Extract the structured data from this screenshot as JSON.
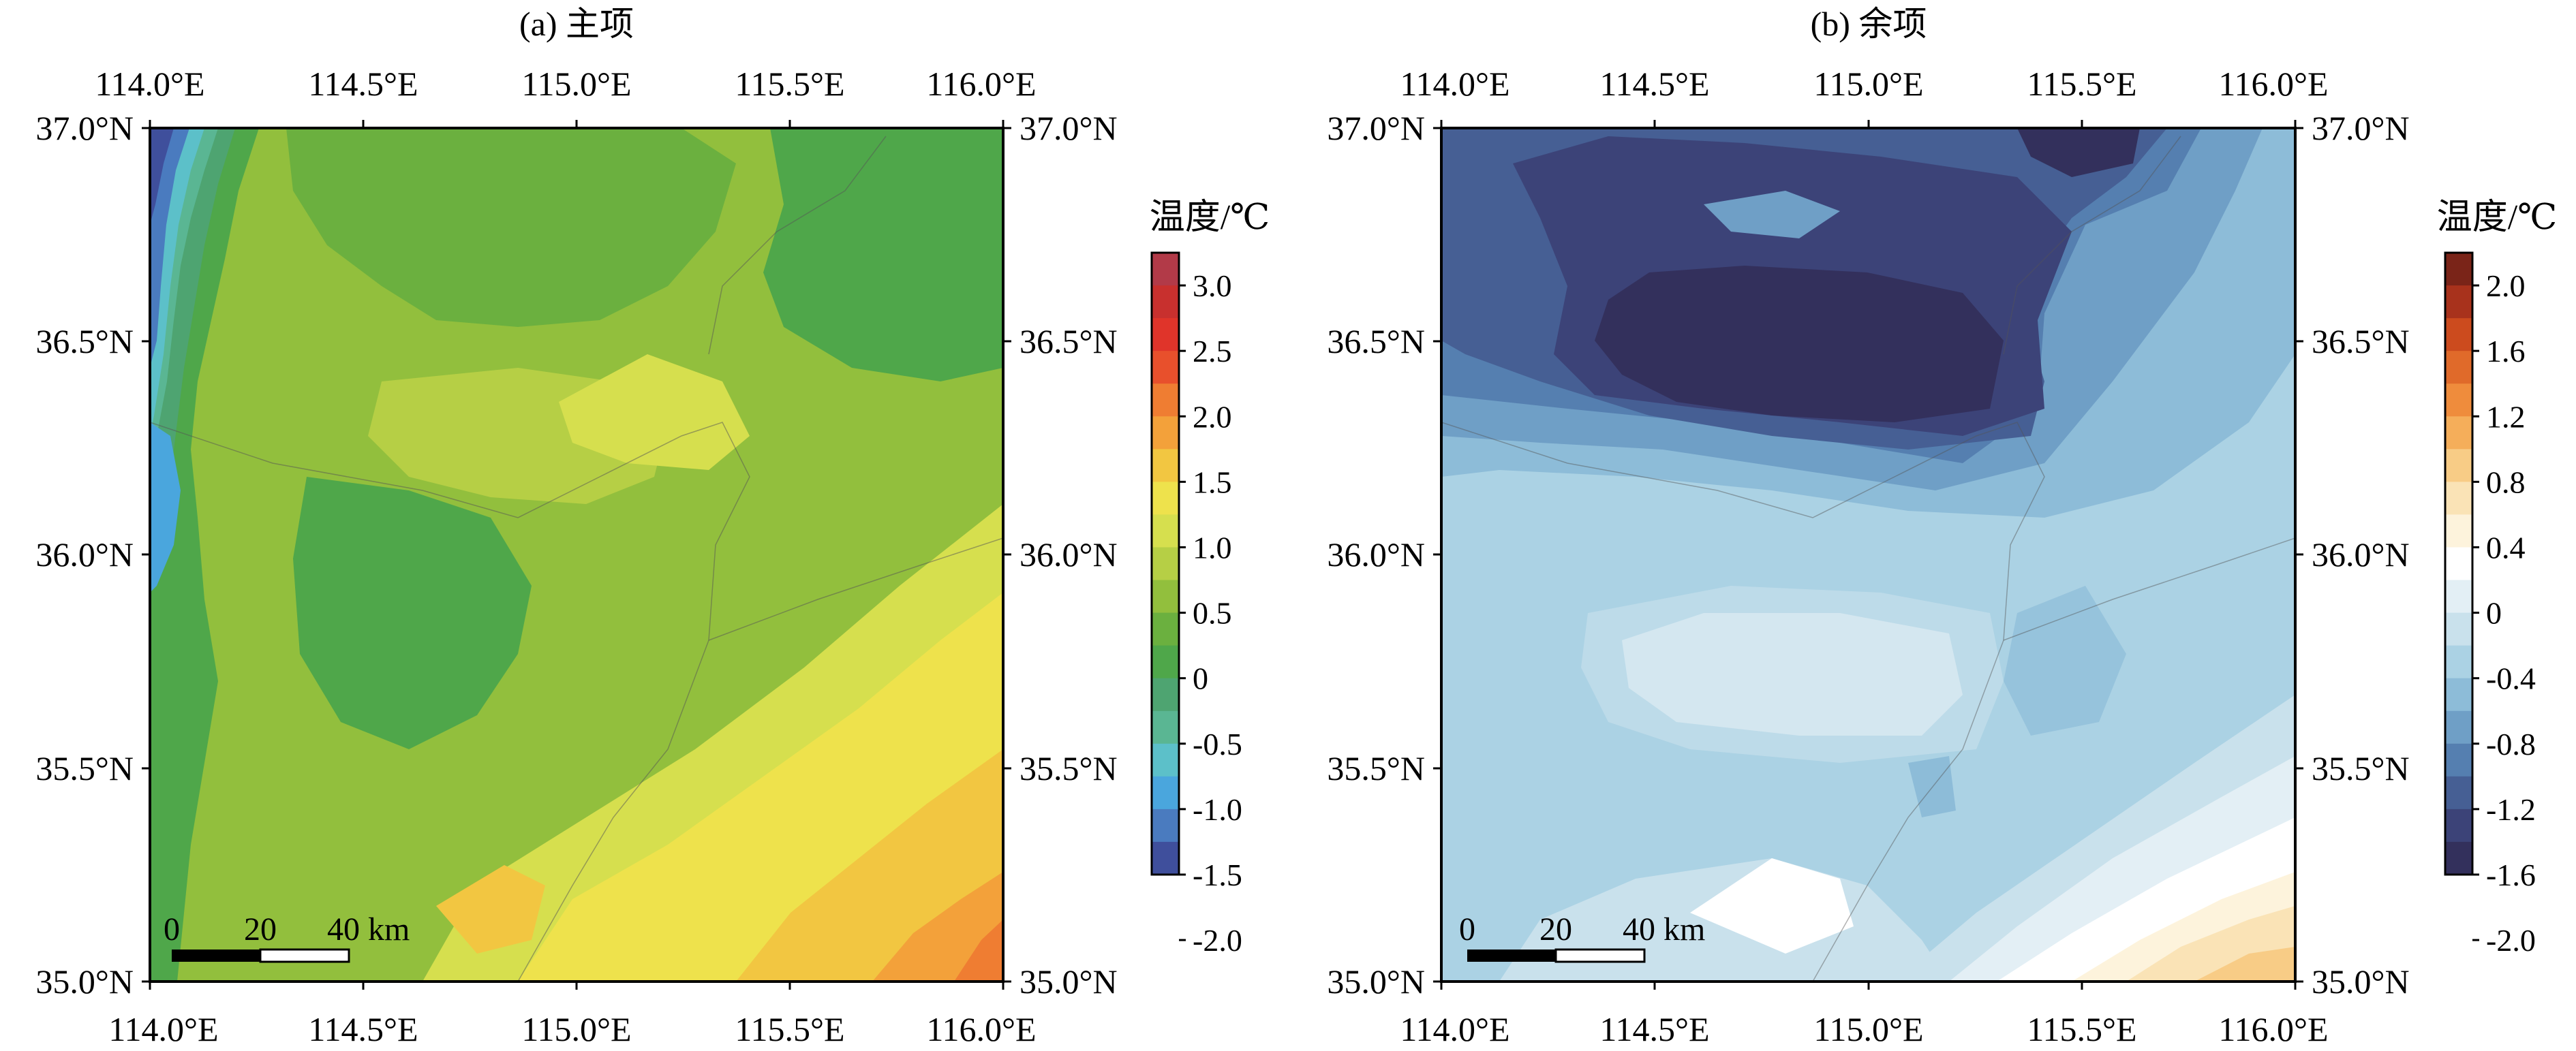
{
  "panels": [
    {
      "id": "a",
      "title": "(a) 主项",
      "x_ticks": [
        "114.0°E",
        "114.5°E",
        "115.0°E",
        "115.5°E",
        "116.0°E"
      ],
      "y_ticks": [
        "35.0°N",
        "35.5°N",
        "36.0°N",
        "36.5°N",
        "37.0°N"
      ],
      "colorbar": {
        "title": "温度/℃",
        "labels": [
          "3.0",
          "2.5",
          "2.0",
          "1.5",
          "1.0",
          "0.5",
          "0",
          "-0.5",
          "-1.0",
          "-1.5",
          "-2.0"
        ],
        "colors": [
          "#b23a48",
          "#c8302e",
          "#e0342a",
          "#e8502c",
          "#ef7d32",
          "#f3a13a",
          "#f2c641",
          "#eee24c",
          "#d6df4e",
          "#b6cf45",
          "#92bf3d",
          "#6bb03f",
          "#4fa74a",
          "#4ea471",
          "#5ab693",
          "#5cc0c9",
          "#4aa6dd",
          "#4a7bbf",
          "#3f4f9c"
        ]
      },
      "scale_bar": {
        "labels": [
          "0",
          "20",
          "40 km"
        ]
      },
      "field_description": "main-term temperature field"
    },
    {
      "id": "b",
      "title": "(b) 余项",
      "x_ticks": [
        "114.0°E",
        "114.5°E",
        "115.0°E",
        "115.5°E",
        "116.0°E"
      ],
      "y_ticks": [
        "35.0°N",
        "35.5°N",
        "36.0°N",
        "36.5°N",
        "37.0°N"
      ],
      "colorbar": {
        "title": "温度/℃",
        "labels": [
          "2.0",
          "1.6",
          "1.2",
          "0.8",
          "0.4",
          "0",
          "-0.4",
          "-0.8",
          "-1.2",
          "-1.6",
          "-2.0"
        ],
        "colors": [
          "#7a2418",
          "#a8321c",
          "#cc4b1e",
          "#e06a2a",
          "#ef8c3c",
          "#f5ae5a",
          "#f8cc86",
          "#fae3b6",
          "#fdf3dc",
          "#ffffff",
          "#e3eff5",
          "#c9e1ec",
          "#abd2e4",
          "#8dbcd8",
          "#6f9fc6",
          "#557fb0",
          "#465f94",
          "#3c4378",
          "#33305c"
        ]
      },
      "scale_bar": {
        "labels": [
          "0",
          "20",
          "40 km"
        ]
      },
      "field_description": "residual-term temperature field"
    }
  ]
}
